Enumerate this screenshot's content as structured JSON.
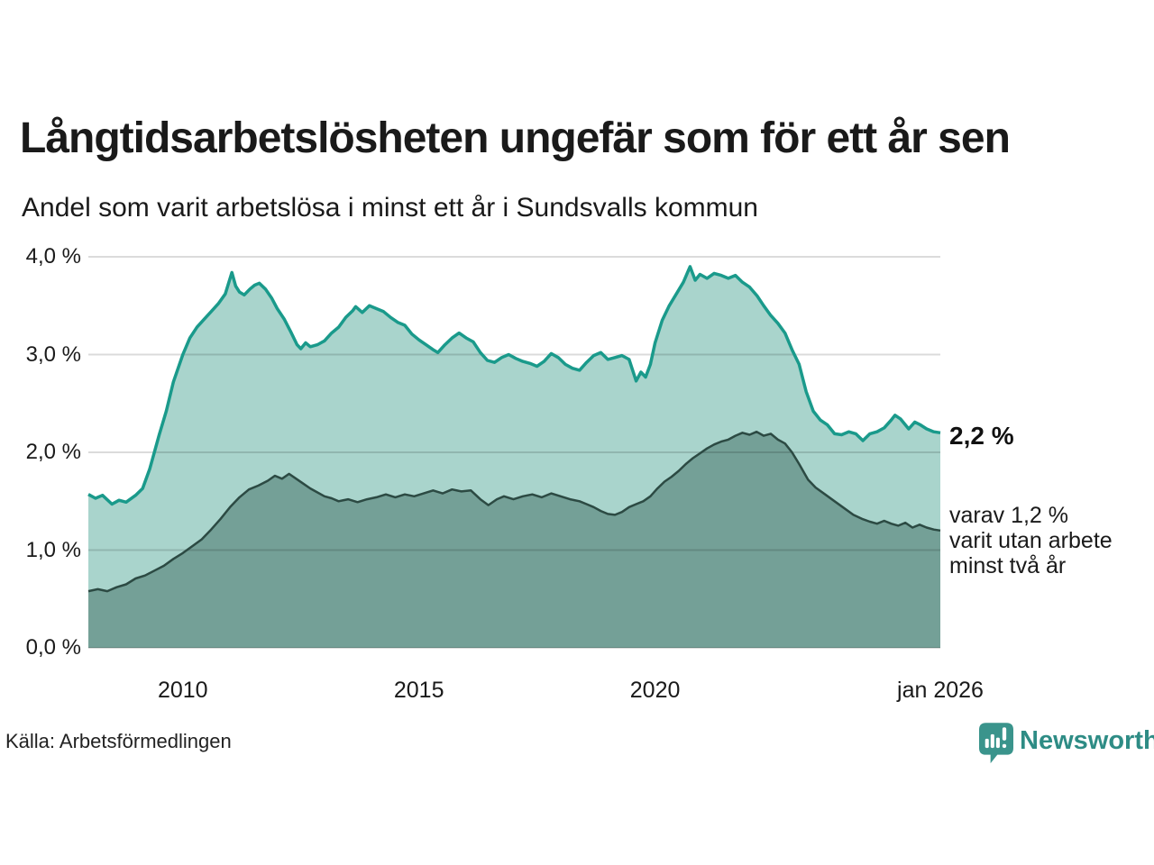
{
  "header": {
    "title": "Långtidsarbetslösheten ungefär som för ett år sen",
    "subtitle": "Andel som varit arbetslösa i minst ett år i Sundsvalls kommun"
  },
  "annotations": {
    "latest_total": "2,2 %",
    "two_years_lines": [
      "varav 1,2 %",
      "varit utan arbete",
      "minst två år"
    ]
  },
  "footer": {
    "source": "Källa: Arbetsförmedlingen"
  },
  "brand": {
    "name": "Newsworthy",
    "color": "#2e8c85",
    "icon_color": "#3a948c"
  },
  "colors": {
    "background": "#ffffff",
    "text": "#1a1a1a",
    "gridline": "rgba(0,0,0,0.14)",
    "total_fill": "#a9d4cc",
    "total_line": "#1a9a8b",
    "two_years_fill": "#74a097",
    "two_years_line": "#2c4a43"
  },
  "chart_data": {
    "type": "area",
    "title": "Långtidsarbetslösheten ungefär som för ett år sen",
    "subtitle": "Andel som varit arbetslösa i minst ett år i Sundsvalls kommun",
    "unit": "%",
    "xlim": [
      2008.0,
      2026.04
    ],
    "ylim": [
      0,
      4
    ],
    "grid": true,
    "y_ticks": [
      {
        "value": 0,
        "label": "0,0 %"
      },
      {
        "value": 1,
        "label": "1,0 %"
      },
      {
        "value": 2,
        "label": "2,0 %"
      },
      {
        "value": 3,
        "label": "3,0 %"
      },
      {
        "value": 4,
        "label": "4,0 %"
      }
    ],
    "x_ticks": [
      {
        "value": 2010,
        "label": "2010"
      },
      {
        "value": 2015,
        "label": "2015"
      },
      {
        "value": 2020,
        "label": "2020"
      },
      {
        "value": 2026.04,
        "label": "jan 2026"
      }
    ],
    "series": [
      {
        "name": "Arbetslösa minst ett år",
        "latest_value": 2.2,
        "fill": "#a9d4cc",
        "stroke": "#1a9a8b",
        "stroke_width": 3.5,
        "points": [
          [
            2008.0,
            1.57
          ],
          [
            2008.15,
            1.53
          ],
          [
            2008.3,
            1.56
          ],
          [
            2008.5,
            1.47
          ],
          [
            2008.65,
            1.51
          ],
          [
            2008.8,
            1.49
          ],
          [
            2009.0,
            1.56
          ],
          [
            2009.15,
            1.63
          ],
          [
            2009.3,
            1.83
          ],
          [
            2009.5,
            2.18
          ],
          [
            2009.65,
            2.42
          ],
          [
            2009.8,
            2.72
          ],
          [
            2010.0,
            3.0
          ],
          [
            2010.15,
            3.17
          ],
          [
            2010.3,
            3.28
          ],
          [
            2010.45,
            3.36
          ],
          [
            2010.6,
            3.44
          ],
          [
            2010.75,
            3.52
          ],
          [
            2010.9,
            3.62
          ],
          [
            2011.04,
            3.84
          ],
          [
            2011.12,
            3.7
          ],
          [
            2011.2,
            3.64
          ],
          [
            2011.3,
            3.61
          ],
          [
            2011.42,
            3.67
          ],
          [
            2011.52,
            3.71
          ],
          [
            2011.62,
            3.73
          ],
          [
            2011.75,
            3.67
          ],
          [
            2011.88,
            3.58
          ],
          [
            2012.0,
            3.47
          ],
          [
            2012.15,
            3.36
          ],
          [
            2012.3,
            3.22
          ],
          [
            2012.42,
            3.1
          ],
          [
            2012.5,
            3.06
          ],
          [
            2012.6,
            3.12
          ],
          [
            2012.7,
            3.08
          ],
          [
            2012.85,
            3.1
          ],
          [
            2013.0,
            3.14
          ],
          [
            2013.15,
            3.22
          ],
          [
            2013.3,
            3.28
          ],
          [
            2013.45,
            3.38
          ],
          [
            2013.6,
            3.45
          ],
          [
            2013.66,
            3.49
          ],
          [
            2013.8,
            3.43
          ],
          [
            2013.95,
            3.5
          ],
          [
            2014.1,
            3.47
          ],
          [
            2014.25,
            3.44
          ],
          [
            2014.4,
            3.38
          ],
          [
            2014.55,
            3.33
          ],
          [
            2014.7,
            3.3
          ],
          [
            2014.85,
            3.21
          ],
          [
            2015.0,
            3.15
          ],
          [
            2015.15,
            3.1
          ],
          [
            2015.3,
            3.05
          ],
          [
            2015.4,
            3.02
          ],
          [
            2015.55,
            3.1
          ],
          [
            2015.7,
            3.17
          ],
          [
            2015.85,
            3.22
          ],
          [
            2016.0,
            3.17
          ],
          [
            2016.15,
            3.13
          ],
          [
            2016.3,
            3.02
          ],
          [
            2016.45,
            2.94
          ],
          [
            2016.6,
            2.92
          ],
          [
            2016.75,
            2.97
          ],
          [
            2016.9,
            3.0
          ],
          [
            2017.05,
            2.96
          ],
          [
            2017.2,
            2.93
          ],
          [
            2017.35,
            2.91
          ],
          [
            2017.5,
            2.88
          ],
          [
            2017.65,
            2.93
          ],
          [
            2017.8,
            3.01
          ],
          [
            2017.95,
            2.97
          ],
          [
            2018.1,
            2.9
          ],
          [
            2018.25,
            2.86
          ],
          [
            2018.4,
            2.84
          ],
          [
            2018.55,
            2.92
          ],
          [
            2018.7,
            2.99
          ],
          [
            2018.85,
            3.02
          ],
          [
            2019.0,
            2.95
          ],
          [
            2019.15,
            2.97
          ],
          [
            2019.3,
            2.99
          ],
          [
            2019.45,
            2.95
          ],
          [
            2019.6,
            2.73
          ],
          [
            2019.7,
            2.82
          ],
          [
            2019.8,
            2.77
          ],
          [
            2019.9,
            2.9
          ],
          [
            2020.0,
            3.12
          ],
          [
            2020.15,
            3.35
          ],
          [
            2020.3,
            3.5
          ],
          [
            2020.45,
            3.62
          ],
          [
            2020.6,
            3.74
          ],
          [
            2020.74,
            3.9
          ],
          [
            2020.85,
            3.76
          ],
          [
            2020.95,
            3.82
          ],
          [
            2021.1,
            3.78
          ],
          [
            2021.25,
            3.83
          ],
          [
            2021.4,
            3.81
          ],
          [
            2021.55,
            3.78
          ],
          [
            2021.7,
            3.81
          ],
          [
            2021.85,
            3.74
          ],
          [
            2022.0,
            3.69
          ],
          [
            2022.16,
            3.6
          ],
          [
            2022.3,
            3.5
          ],
          [
            2022.45,
            3.4
          ],
          [
            2022.6,
            3.32
          ],
          [
            2022.75,
            3.22
          ],
          [
            2022.9,
            3.05
          ],
          [
            2023.05,
            2.9
          ],
          [
            2023.2,
            2.62
          ],
          [
            2023.35,
            2.42
          ],
          [
            2023.5,
            2.33
          ],
          [
            2023.65,
            2.28
          ],
          [
            2023.8,
            2.19
          ],
          [
            2023.95,
            2.18
          ],
          [
            2024.1,
            2.21
          ],
          [
            2024.25,
            2.19
          ],
          [
            2024.4,
            2.12
          ],
          [
            2024.55,
            2.19
          ],
          [
            2024.7,
            2.21
          ],
          [
            2024.85,
            2.25
          ],
          [
            2025.0,
            2.33
          ],
          [
            2025.08,
            2.38
          ],
          [
            2025.2,
            2.34
          ],
          [
            2025.37,
            2.24
          ],
          [
            2025.5,
            2.31
          ],
          [
            2025.62,
            2.28
          ],
          [
            2025.75,
            2.24
          ],
          [
            2025.9,
            2.21
          ],
          [
            2026.04,
            2.2
          ]
        ]
      },
      {
        "name": "Varit utan arbete minst två år",
        "latest_value": 1.2,
        "fill": "#74a097",
        "stroke": "#2c4a43",
        "stroke_width": 2.5,
        "points": [
          [
            2008.0,
            0.58
          ],
          [
            2008.2,
            0.6
          ],
          [
            2008.4,
            0.58
          ],
          [
            2008.6,
            0.62
          ],
          [
            2008.8,
            0.65
          ],
          [
            2009.0,
            0.71
          ],
          [
            2009.2,
            0.74
          ],
          [
            2009.4,
            0.79
          ],
          [
            2009.6,
            0.84
          ],
          [
            2009.8,
            0.91
          ],
          [
            2010.0,
            0.97
          ],
          [
            2010.2,
            1.04
          ],
          [
            2010.4,
            1.11
          ],
          [
            2010.6,
            1.21
          ],
          [
            2010.8,
            1.32
          ],
          [
            2011.0,
            1.44
          ],
          [
            2011.2,
            1.54
          ],
          [
            2011.4,
            1.62
          ],
          [
            2011.6,
            1.66
          ],
          [
            2011.8,
            1.71
          ],
          [
            2011.95,
            1.76
          ],
          [
            2012.1,
            1.73
          ],
          [
            2012.25,
            1.78
          ],
          [
            2012.4,
            1.73
          ],
          [
            2012.55,
            1.68
          ],
          [
            2012.7,
            1.63
          ],
          [
            2012.85,
            1.59
          ],
          [
            2013.0,
            1.55
          ],
          [
            2013.15,
            1.53
          ],
          [
            2013.3,
            1.5
          ],
          [
            2013.5,
            1.52
          ],
          [
            2013.7,
            1.49
          ],
          [
            2013.9,
            1.52
          ],
          [
            2014.1,
            1.54
          ],
          [
            2014.3,
            1.57
          ],
          [
            2014.5,
            1.54
          ],
          [
            2014.7,
            1.57
          ],
          [
            2014.9,
            1.55
          ],
          [
            2015.1,
            1.58
          ],
          [
            2015.3,
            1.61
          ],
          [
            2015.5,
            1.58
          ],
          [
            2015.7,
            1.62
          ],
          [
            2015.9,
            1.6
          ],
          [
            2016.1,
            1.61
          ],
          [
            2016.3,
            1.52
          ],
          [
            2016.47,
            1.46
          ],
          [
            2016.65,
            1.52
          ],
          [
            2016.8,
            1.55
          ],
          [
            2017.0,
            1.52
          ],
          [
            2017.2,
            1.55
          ],
          [
            2017.4,
            1.57
          ],
          [
            2017.6,
            1.54
          ],
          [
            2017.8,
            1.58
          ],
          [
            2018.0,
            1.55
          ],
          [
            2018.2,
            1.52
          ],
          [
            2018.4,
            1.5
          ],
          [
            2018.55,
            1.47
          ],
          [
            2018.7,
            1.44
          ],
          [
            2018.85,
            1.4
          ],
          [
            2019.0,
            1.37
          ],
          [
            2019.15,
            1.36
          ],
          [
            2019.3,
            1.39
          ],
          [
            2019.45,
            1.44
          ],
          [
            2019.6,
            1.47
          ],
          [
            2019.75,
            1.5
          ],
          [
            2019.9,
            1.55
          ],
          [
            2020.05,
            1.63
          ],
          [
            2020.2,
            1.7
          ],
          [
            2020.35,
            1.75
          ],
          [
            2020.5,
            1.81
          ],
          [
            2020.65,
            1.88
          ],
          [
            2020.8,
            1.94
          ],
          [
            2020.95,
            1.99
          ],
          [
            2021.1,
            2.04
          ],
          [
            2021.25,
            2.08
          ],
          [
            2021.4,
            2.11
          ],
          [
            2021.55,
            2.13
          ],
          [
            2021.7,
            2.17
          ],
          [
            2021.85,
            2.2
          ],
          [
            2022.0,
            2.18
          ],
          [
            2022.15,
            2.21
          ],
          [
            2022.3,
            2.17
          ],
          [
            2022.45,
            2.19
          ],
          [
            2022.6,
            2.13
          ],
          [
            2022.75,
            2.09
          ],
          [
            2022.9,
            2.0
          ],
          [
            2023.05,
            1.88
          ],
          [
            2023.24,
            1.72
          ],
          [
            2023.4,
            1.64
          ],
          [
            2023.6,
            1.57
          ],
          [
            2023.8,
            1.5
          ],
          [
            2024.0,
            1.43
          ],
          [
            2024.2,
            1.36
          ],
          [
            2024.38,
            1.32
          ],
          [
            2024.55,
            1.29
          ],
          [
            2024.7,
            1.27
          ],
          [
            2024.85,
            1.3
          ],
          [
            2025.0,
            1.27
          ],
          [
            2025.15,
            1.25
          ],
          [
            2025.3,
            1.28
          ],
          [
            2025.45,
            1.23
          ],
          [
            2025.6,
            1.26
          ],
          [
            2025.75,
            1.23
          ],
          [
            2025.9,
            1.21
          ],
          [
            2026.04,
            1.2
          ]
        ]
      }
    ]
  }
}
